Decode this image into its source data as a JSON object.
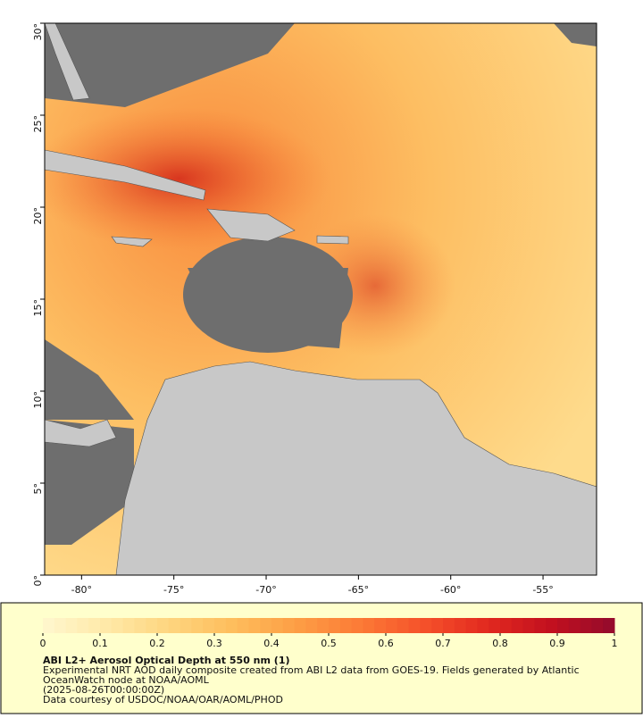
{
  "map": {
    "xlim": [
      -82,
      -52.1
    ],
    "ylim": [
      0,
      30
    ],
    "xticks": [
      {
        "value": -80,
        "label": "-80°"
      },
      {
        "value": -75,
        "label": "-75°"
      },
      {
        "value": -70,
        "label": "-70°"
      },
      {
        "value": -65,
        "label": "-65°"
      },
      {
        "value": -60,
        "label": "-60°"
      },
      {
        "value": -55,
        "label": "-55°"
      }
    ],
    "yticks": [
      {
        "value": 0,
        "label": "0°"
      },
      {
        "value": 5,
        "label": "5°"
      },
      {
        "value": 10,
        "label": "10°"
      },
      {
        "value": 15,
        "label": "15°"
      },
      {
        "value": 20,
        "label": "20°"
      },
      {
        "value": 25,
        "label": "25°"
      },
      {
        "value": 30,
        "label": "30°"
      }
    ]
  },
  "colorbar": {
    "range": [
      0,
      1
    ],
    "ticks": [
      0,
      0.1,
      0.2,
      0.3,
      0.4,
      0.5,
      0.6,
      0.7,
      0.8,
      0.9,
      1
    ],
    "colors": [
      "#fff7cf",
      "#ffe9a8",
      "#fed57e",
      "#febd5c",
      "#fd9e45",
      "#fc7a36",
      "#f5512a",
      "#e2291f",
      "#c2101f",
      "#930a2c"
    ],
    "steps": 50
  },
  "caption": {
    "title": "ABI L2+ Aerosol Optical Depth at 550 nm (1)",
    "lines": [
      "Experimental NRT AOD daily composite created from ABI L2 data from GOES-19. Fields generated by Atlantic",
      "OceanWatch node at NOAA/AOML",
      "(2025-08-26T00:00:00Z)",
      "Data courtesy of USDOC/NOAA/OAR/AOML/PHOD"
    ]
  }
}
